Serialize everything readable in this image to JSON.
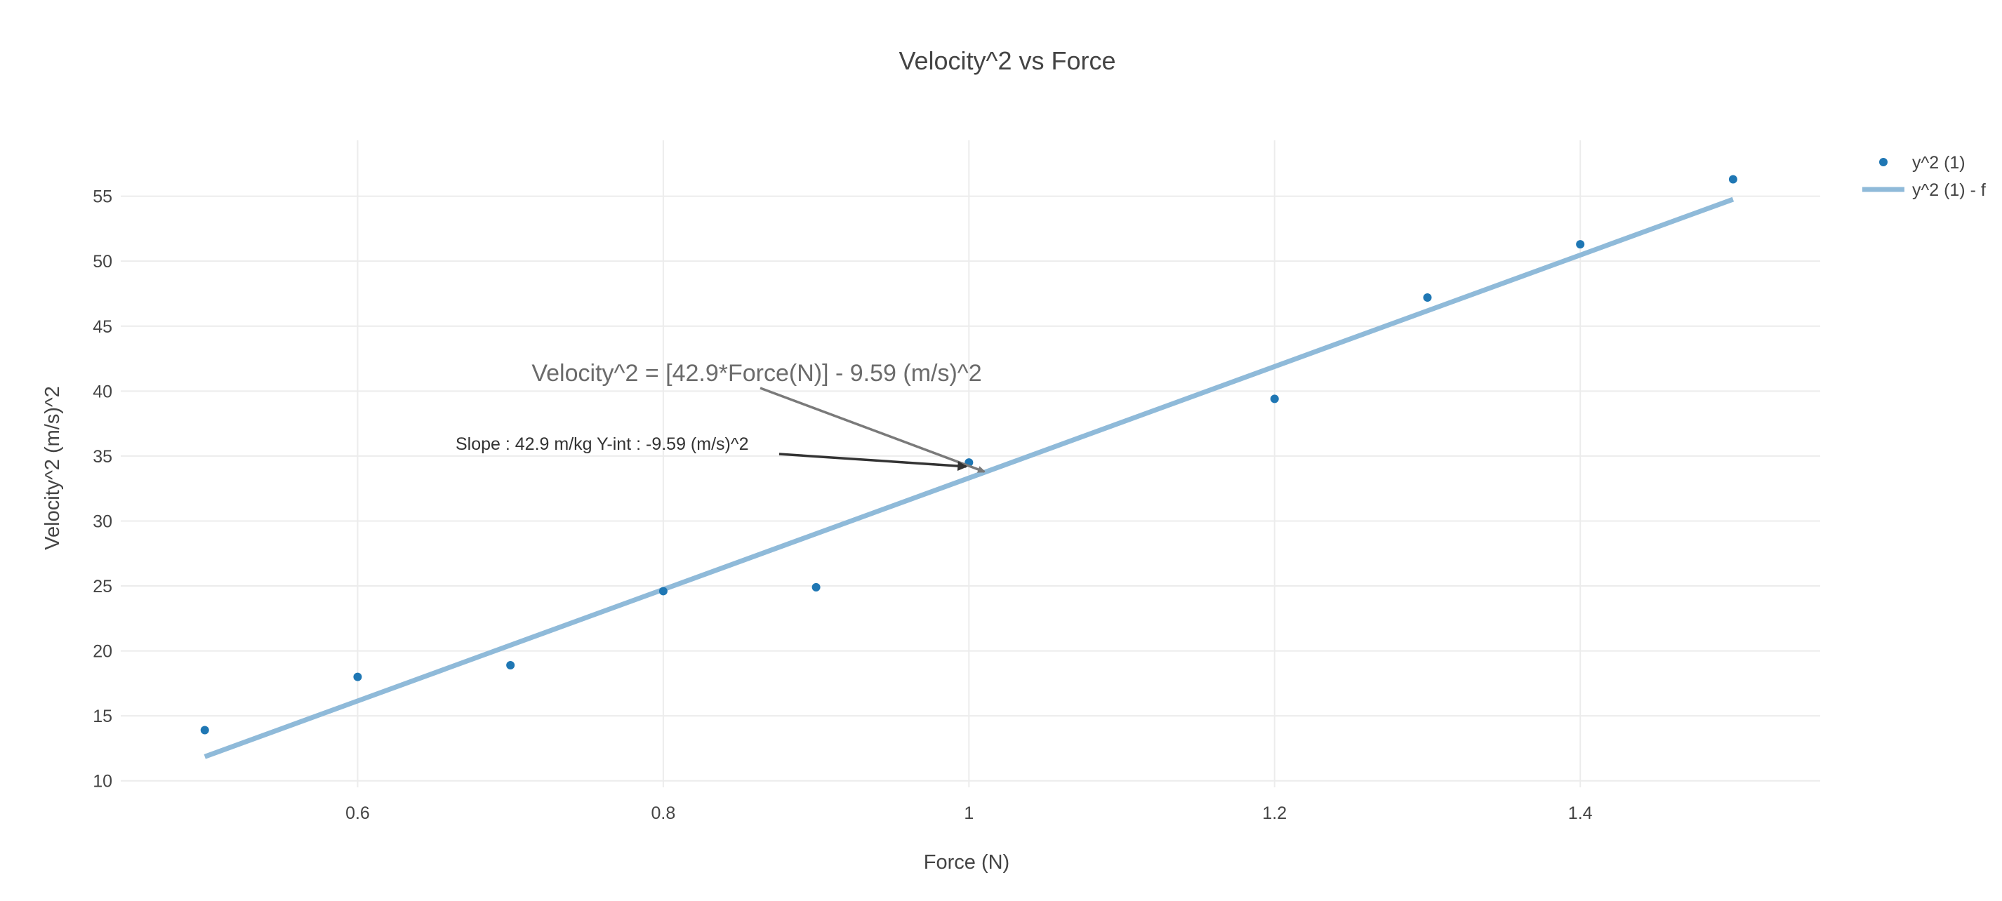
{
  "chart_data": {
    "type": "scatter",
    "title": "Velocity^2 vs Force",
    "xlabel": "Force (N)",
    "ylabel": "Velocity^2 (m/s)^2",
    "xlim": [
      0.445,
      1.557
    ],
    "ylim": [
      9.5,
      59.3
    ],
    "x_ticks": [
      0.6,
      0.8,
      1,
      1.2,
      1.4
    ],
    "x_tick_labels": [
      "0.6",
      "0.8",
      "1",
      "1.2",
      "1.4"
    ],
    "y_ticks": [
      10,
      15,
      20,
      25,
      30,
      35,
      40,
      45,
      50,
      55
    ],
    "y_tick_labels": [
      "10",
      "15",
      "20",
      "25",
      "30",
      "35",
      "40",
      "45",
      "50",
      "55"
    ],
    "grid": true,
    "legend_position": "top-right",
    "colors": {
      "points": "#1f77b4",
      "fit": "#8fbad9"
    },
    "series": [
      {
        "name": "y^2 (1)",
        "mode": "markers",
        "x": [
          0.5,
          0.6,
          0.7,
          0.8,
          0.9,
          1.0,
          1.2,
          1.3,
          1.4,
          1.5
        ],
        "y": [
          13.9,
          18.0,
          18.9,
          24.6,
          24.9,
          34.5,
          39.4,
          47.2,
          51.3,
          56.3
        ]
      },
      {
        "name": "y^2 (1) - f",
        "mode": "lines",
        "x": [
          0.5,
          1.5
        ],
        "y": [
          11.86,
          54.76
        ]
      }
    ],
    "annotations": [
      {
        "id": "equation",
        "text": "Velocity^2 = [42.9*Force(N)] - 9.59 (m/s)^2",
        "x": 1.01,
        "y": 33.8
      },
      {
        "id": "slope",
        "text": "Slope : 42.9 m/kg  Y-int : -9.59 (m/s)^2",
        "x": 1.0,
        "y": 34.3
      }
    ]
  }
}
